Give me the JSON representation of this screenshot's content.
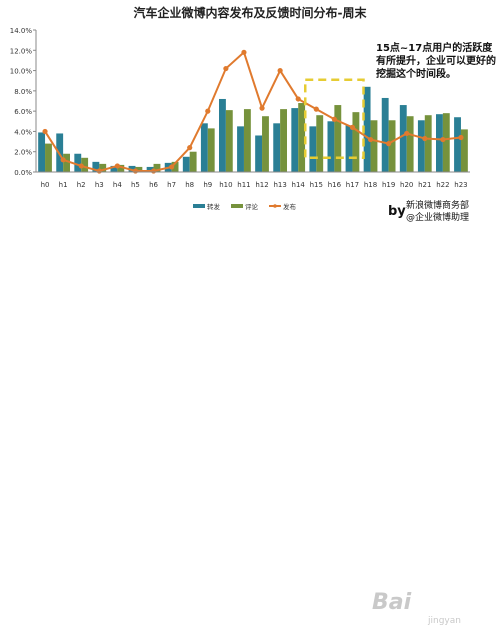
{
  "chart_data": {
    "type": "bar",
    "title": "汽车企业微博内容发布及反馈时间分布-周末",
    "categories": [
      "h0",
      "h1",
      "h2",
      "h3",
      "h4",
      "h5",
      "h6",
      "h7",
      "h8",
      "h9",
      "h10",
      "h11",
      "h12",
      "h13",
      "h14",
      "h15",
      "h16",
      "h17",
      "h18",
      "h19",
      "h20",
      "h21",
      "h22",
      "h23"
    ],
    "series": [
      {
        "name": "转发",
        "kind": "bar",
        "color": "#2a7f95",
        "values": [
          3.9,
          3.8,
          1.8,
          1.0,
          0.6,
          0.6,
          0.5,
          0.9,
          1.5,
          4.8,
          7.2,
          4.5,
          3.6,
          4.8,
          6.3,
          4.5,
          5.0,
          4.6,
          8.4,
          7.3,
          6.6,
          5.1,
          5.7,
          5.4
        ]
      },
      {
        "name": "评论",
        "kind": "bar",
        "color": "#76923c",
        "values": [
          2.8,
          1.8,
          1.4,
          0.8,
          0.7,
          0.5,
          0.8,
          1.0,
          2.0,
          4.3,
          6.1,
          6.2,
          5.5,
          6.2,
          6.8,
          5.6,
          6.6,
          5.9,
          5.1,
          5.1,
          5.5,
          5.6,
          5.8,
          4.2
        ]
      },
      {
        "name": "发布",
        "kind": "line",
        "color": "#e07a2e",
        "values": [
          4.0,
          1.2,
          0.6,
          0.1,
          0.6,
          0.1,
          0.1,
          0.5,
          2.4,
          6.0,
          10.2,
          11.8,
          6.3,
          10.0,
          7.2,
          6.2,
          5.2,
          4.4,
          3.2,
          2.8,
          3.8,
          3.3,
          3.2,
          3.4
        ]
      }
    ],
    "ylim": [
      0,
      14
    ],
    "yticks": [
      "0.0%",
      "2.0%",
      "4.0%",
      "6.0%",
      "8.0%",
      "10.0%",
      "12.0%",
      "14.0%"
    ],
    "grid": false,
    "legend_position": "bottom",
    "annotation": "15点~17点用户的活跃度有所提升，企业可以更好的挖掘这个时间段。",
    "highlight_range": [
      "h15",
      "h17"
    ],
    "highlight_color": "#e6cc33",
    "credit": {
      "by": "by",
      "line1": "新浪微博商务部",
      "line2": "@企业微博助理"
    }
  },
  "watermark": {
    "text": "Bai",
    "sub": "jingyan"
  }
}
